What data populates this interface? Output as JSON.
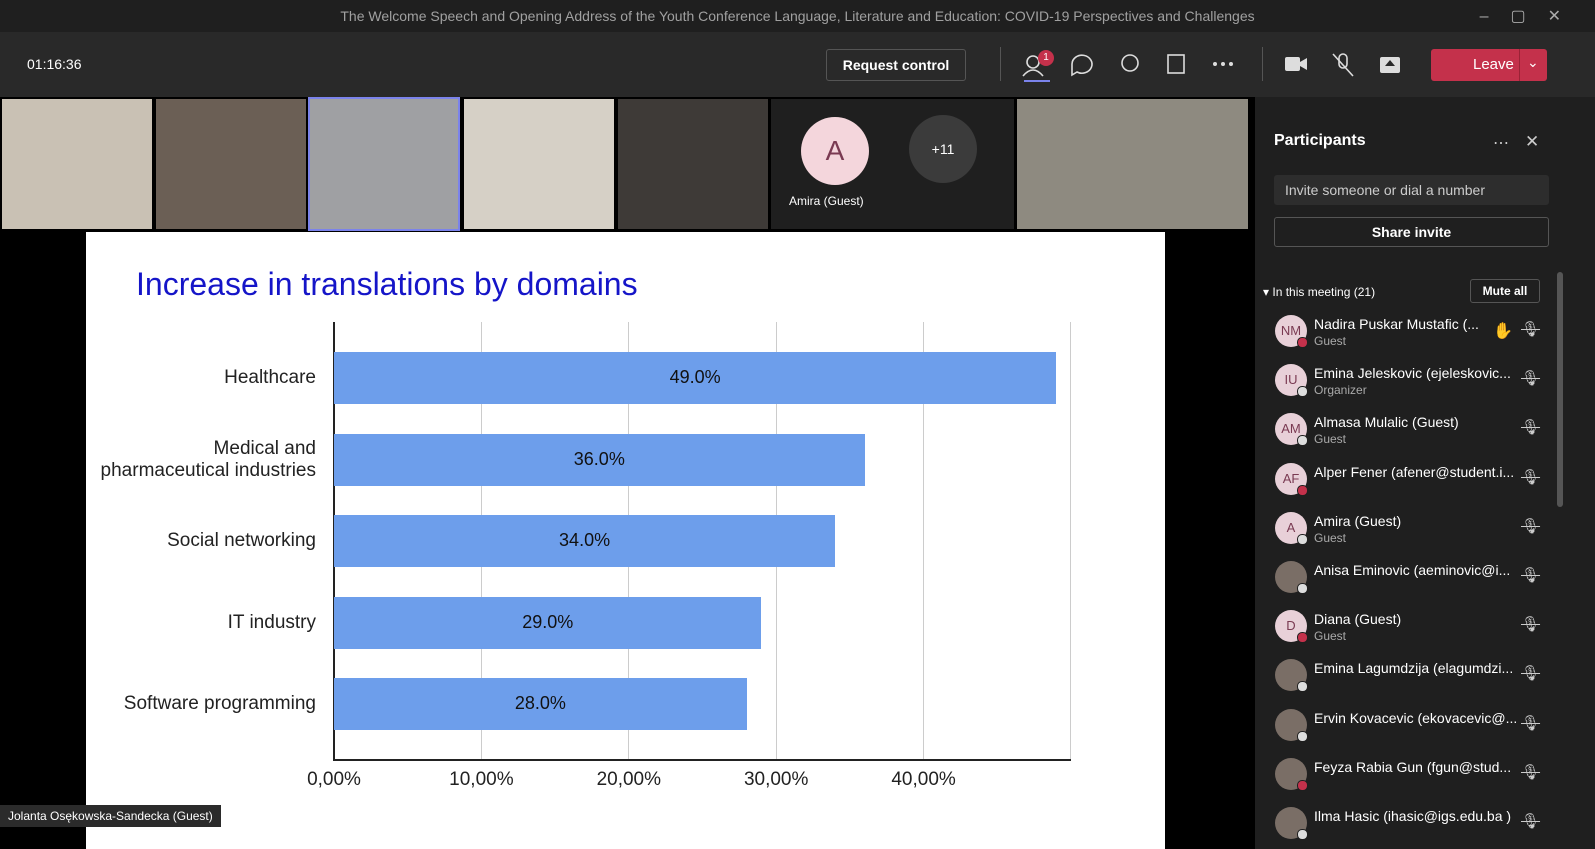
{
  "window": {
    "title": "The Welcome Speech and Opening Address of the Youth Conference Language, Literature and Education: COVID-19 Perspectives and Challenges"
  },
  "toolbar": {
    "timer": "01:16:36",
    "request_control": "Request control",
    "people_badge": "1",
    "leave": "Leave"
  },
  "videos": {
    "avatar_initial": "A",
    "avatar_name": "Amira (Guest)",
    "overflow": "+11"
  },
  "presenter": "Jolanta Osękowska-Sandecka (Guest)",
  "chart_data": {
    "type": "bar",
    "orientation": "horizontal",
    "title": "Increase in translations by domains",
    "categories": [
      "Healthcare",
      "Medical and pharmaceutical industries",
      "Social networking",
      "IT industry",
      "Software programming"
    ],
    "values": [
      49,
      36,
      34,
      29,
      28
    ],
    "value_labels": [
      "49.0%",
      "36.0%",
      "34.0%",
      "29.0%",
      "28.0%"
    ],
    "color": "#6d9eeb",
    "xlim": [
      0,
      50
    ],
    "xticks": [
      {
        "value": 0,
        "label": "0,00%"
      },
      {
        "value": 10,
        "label": "10,00%"
      },
      {
        "value": 20,
        "label": "20,00%"
      },
      {
        "value": 30,
        "label": "30,00%"
      },
      {
        "value": 40,
        "label": "40,00%"
      }
    ],
    "grid": true
  },
  "panel": {
    "title": "Participants",
    "search_placeholder": "Invite someone or dial a number",
    "share_invite": "Share invite",
    "section": "In this meeting (21)",
    "mute_all": "Mute all",
    "participants": [
      {
        "name": "Nadira Puskar Mustafic (...",
        "role": "Guest",
        "initials": "NM"
      },
      {
        "name": "Emina Jeleskovic (ejeleskovic...",
        "role": "Organizer",
        "initials": "IU"
      },
      {
        "name": "Almasa Mulalic (Guest)",
        "role": "Guest",
        "initials": "AM"
      },
      {
        "name": "Alper Fener (afener@student.i...",
        "initials": "AF"
      },
      {
        "name": "Amira (Guest)",
        "role": "Guest",
        "initials": "A"
      },
      {
        "name": "Anisa Eminovic (aeminovic@i..."
      },
      {
        "name": "Diana (Guest)",
        "role": "Guest",
        "initials": "D"
      },
      {
        "name": "Emina Lagumdzija (elagumdzi..."
      },
      {
        "name": "Ervin Kovacevic (ekovacevic@..."
      },
      {
        "name": "Feyza Rabia Gun (fgun@stud..."
      },
      {
        "name": "Ilma Hasic (ihasic@igs.edu.ba )"
      }
    ]
  }
}
